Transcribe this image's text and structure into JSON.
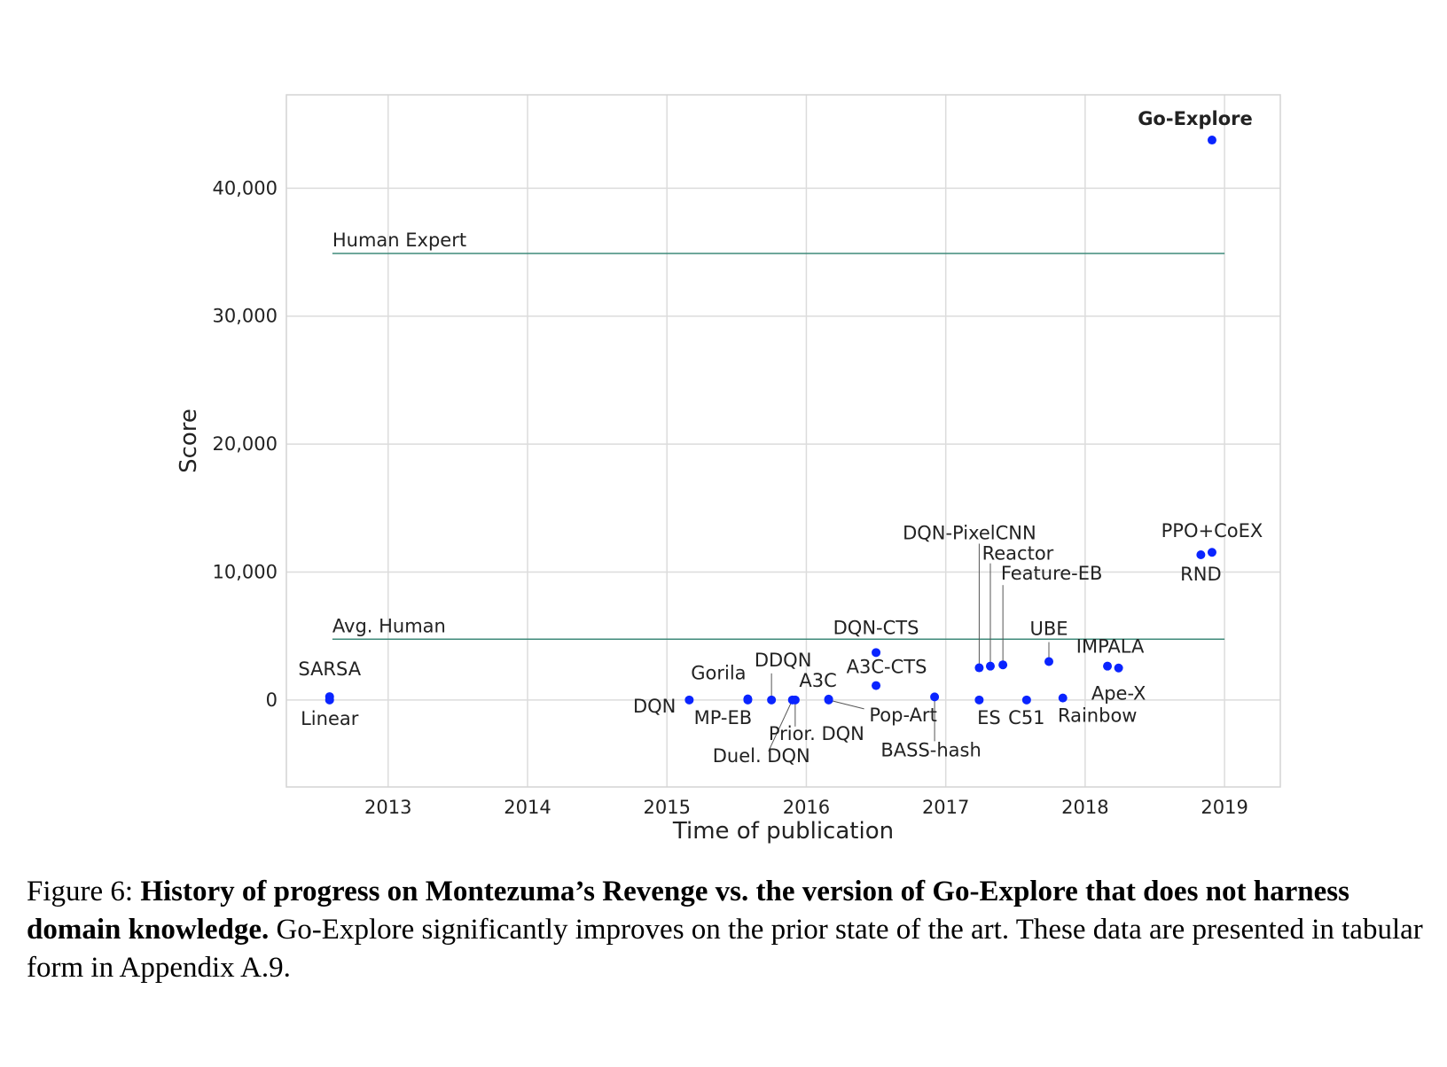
{
  "chart_data": {
    "type": "scatter",
    "xlabel": "Time of publication",
    "ylabel": "Score",
    "xlim": [
      2012.27,
      2019.4
    ],
    "ylim": [
      -6800,
      47300
    ],
    "x_ticks": [
      {
        "value": 2013,
        "label": "2013"
      },
      {
        "value": 2014,
        "label": "2014"
      },
      {
        "value": 2015,
        "label": "2015"
      },
      {
        "value": 2016,
        "label": "2016"
      },
      {
        "value": 2017,
        "label": "2017"
      },
      {
        "value": 2018,
        "label": "2018"
      },
      {
        "value": 2019,
        "label": "2019"
      }
    ],
    "y_ticks": [
      {
        "value": 0,
        "label": "0"
      },
      {
        "value": 10000,
        "label": "10,000"
      },
      {
        "value": 20000,
        "label": "20,000"
      },
      {
        "value": 30000,
        "label": "30,000"
      },
      {
        "value": 40000,
        "label": "40,000"
      }
    ],
    "grid": true,
    "point_color": "#0a24ff",
    "reference_color": "#3f8a7a",
    "reference_lines": [
      {
        "label": "Human Expert",
        "y": 34900,
        "x_start": 2012.6,
        "x_end": 2019.0
      },
      {
        "label": "Avg. Human",
        "y": 4750,
        "x_start": 2012.6,
        "x_end": 2019.0
      }
    ],
    "points": [
      {
        "name": "SARSA",
        "x": 2012.58,
        "y": 259,
        "label_pos": "above"
      },
      {
        "name": "Linear",
        "x": 2012.58,
        "y": 0,
        "label_pos": "below"
      },
      {
        "name": "DQN",
        "x": 2015.16,
        "y": 0,
        "label_pos": "left"
      },
      {
        "name": "Gorila",
        "x": 2015.58,
        "y": 84,
        "label_pos": "above"
      },
      {
        "name": "MP-EB",
        "x": 2015.58,
        "y": 0,
        "label_pos": "below"
      },
      {
        "name": "DDQN",
        "x": 2015.75,
        "y": 0,
        "label_pos": "leader-up"
      },
      {
        "name": "Duel. DQN",
        "x": 2015.9,
        "y": 0,
        "label_pos": "leader-down-left"
      },
      {
        "name": "Prior. DQN",
        "x": 2015.92,
        "y": 0,
        "label_pos": "leader-down"
      },
      {
        "name": "A3C",
        "x": 2016.16,
        "y": 67,
        "label_pos": "above"
      },
      {
        "name": "Pop-Art",
        "x": 2016.16,
        "y": 0,
        "label_pos": "leader-right"
      },
      {
        "name": "DQN-CTS",
        "x": 2016.5,
        "y": 3705,
        "label_pos": "above"
      },
      {
        "name": "A3C-CTS",
        "x": 2016.5,
        "y": 1127,
        "label_pos": "above"
      },
      {
        "name": "BASS-hash",
        "x": 2016.92,
        "y": 238,
        "label_pos": "leader-down"
      },
      {
        "name": "DQN-PixelCNN",
        "x": 2017.24,
        "y": 2514,
        "label_pos": "leader-up"
      },
      {
        "name": "ES",
        "x": 2017.24,
        "y": 0,
        "label_pos": "below"
      },
      {
        "name": "Reactor",
        "x": 2017.32,
        "y": 2643,
        "label_pos": "leader-up"
      },
      {
        "name": "Feature-EB",
        "x": 2017.41,
        "y": 2745,
        "label_pos": "leader-up"
      },
      {
        "name": "C51",
        "x": 2017.58,
        "y": 0,
        "label_pos": "below"
      },
      {
        "name": "UBE",
        "x": 2017.74,
        "y": 3000,
        "label_pos": "leader-up"
      },
      {
        "name": "Rainbow",
        "x": 2017.84,
        "y": 154,
        "label_pos": "below"
      },
      {
        "name": "IMPALA",
        "x": 2018.16,
        "y": 2643,
        "label_pos": "above"
      },
      {
        "name": "Ape-X",
        "x": 2018.24,
        "y": 2500,
        "label_pos": "below"
      },
      {
        "name": "RND",
        "x": 2018.83,
        "y": 11347,
        "label_pos": "below"
      },
      {
        "name": "PPO+CoEX",
        "x": 2018.91,
        "y": 11540,
        "label_pos": "above"
      },
      {
        "name": "Go-Explore",
        "x": 2018.91,
        "y": 43763,
        "label_pos": "above",
        "bold": true
      }
    ]
  },
  "caption": {
    "prefix": "Figure 6: ",
    "bold": "History of progress on Montezuma’s Revenge vs. the version of Go-Explore that does not harness domain knowledge.",
    "rest": " Go-Explore significantly improves on the prior state of the art. These data are presented in tabular form in Appendix A.9."
  }
}
